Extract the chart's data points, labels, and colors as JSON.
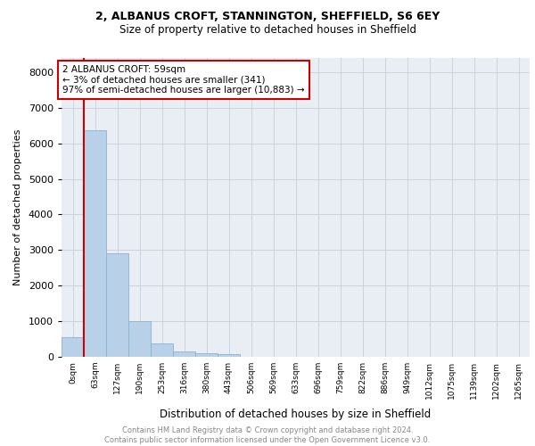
{
  "title_line1": "2, ALBANUS CROFT, STANNINGTON, SHEFFIELD, S6 6EY",
  "title_line2": "Size of property relative to detached houses in Sheffield",
  "xlabel": "Distribution of detached houses by size in Sheffield",
  "ylabel": "Number of detached properties",
  "footnote": "Contains HM Land Registry data © Crown copyright and database right 2024.\nContains public sector information licensed under the Open Government Licence v3.0.",
  "bar_labels": [
    "0sqm",
    "63sqm",
    "127sqm",
    "190sqm",
    "253sqm",
    "316sqm",
    "380sqm",
    "443sqm",
    "506sqm",
    "569sqm",
    "633sqm",
    "696sqm",
    "759sqm",
    "822sqm",
    "886sqm",
    "949sqm",
    "1012sqm",
    "1075sqm",
    "1139sqm",
    "1202sqm",
    "1265sqm"
  ],
  "bar_values": [
    560,
    6380,
    2900,
    1000,
    370,
    160,
    100,
    70,
    0,
    0,
    0,
    0,
    0,
    0,
    0,
    0,
    0,
    0,
    0,
    0,
    0
  ],
  "highlight_color": "#cc0000",
  "bar_color": "#b8d0e8",
  "bar_edge_color": "#8ab4cc",
  "ylim_max": 8400,
  "yticks": [
    0,
    1000,
    2000,
    3000,
    4000,
    5000,
    6000,
    7000,
    8000
  ],
  "annotation_text": "2 ALBANUS CROFT: 59sqm\n← 3% of detached houses are smaller (341)\n97% of semi-detached houses are larger (10,883) →",
  "background_color": "#e8eef4",
  "grid_color": "#c8d4e0"
}
